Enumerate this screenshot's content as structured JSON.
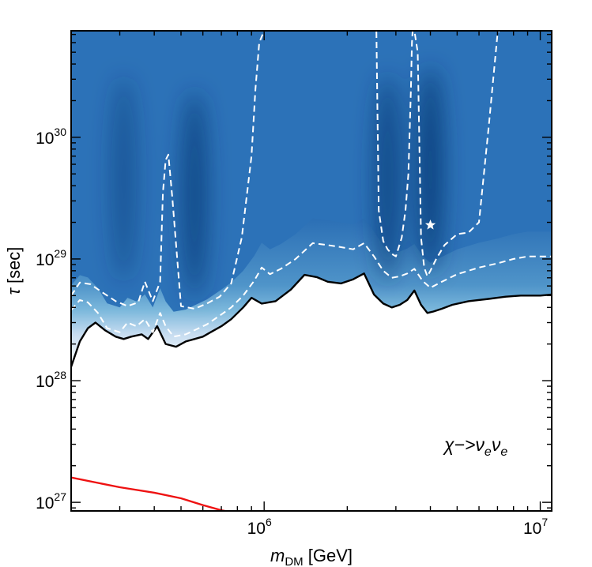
{
  "chart_data": {
    "type": "heatmap",
    "title": "",
    "xlabel": {
      "symbol": "m",
      "subscript": "DM",
      "unit": "[GeV]"
    },
    "ylabel": {
      "symbol": "τ",
      "unit": "[sec]"
    },
    "xscale": "log",
    "yscale": "log",
    "xlim": [
      200000,
      11000000
    ],
    "ylim": [
      8.5e+26,
      7.5e+30
    ],
    "x_ticks": [
      {
        "value": 1000000,
        "base": "10",
        "exp": "6"
      },
      {
        "value": 10000000,
        "base": "10",
        "exp": "7"
      }
    ],
    "y_ticks": [
      {
        "value": 1e+27,
        "base": "10",
        "exp": "27"
      },
      {
        "value": 1e+28,
        "base": "10",
        "exp": "28"
      },
      {
        "value": 1e+29,
        "base": "10",
        "exp": "29"
      },
      {
        "value": 1e+30,
        "base": "10",
        "exp": "30"
      }
    ],
    "colormap": "Blues",
    "annotation": {
      "text": "χ−>ν",
      "sub1": "e",
      "mid": "ν",
      "sub2": "e",
      "position": "lower-right"
    },
    "best_fit": {
      "x": 4000000,
      "y": 1.9e+29,
      "marker": "star",
      "color": "#ffffff"
    },
    "dark_ridges": [
      {
        "x": 310000,
        "y": 1.6e+29,
        "strength": 0.55
      },
      {
        "x": 560000,
        "y": 1.2e+29,
        "strength": 0.85
      },
      {
        "x": 2800000,
        "y": 1.6e+29,
        "strength": 0.85
      },
      {
        "x": 4000000,
        "y": 1.9e+29,
        "strength": 1.0
      }
    ],
    "series": [
      {
        "name": "limit",
        "color": "#000000",
        "style": "solid",
        "x": [
          200000,
          215000,
          230000,
          245000,
          265000,
          290000,
          310000,
          330000,
          360000,
          380000,
          410000,
          440000,
          480000,
          520000,
          560000,
          600000,
          640000,
          700000,
          760000,
          840000,
          900000,
          980000,
          1100000,
          1250000,
          1400000,
          1550000,
          1700000,
          1900000,
          2100000,
          2300000,
          2500000,
          2700000,
          2900000,
          3100000,
          3300000,
          3500000,
          3700000,
          3900000,
          4100000,
          4400000,
          4800000,
          5500000,
          6500000,
          7500000,
          8500000,
          10000000,
          11000000
        ],
        "y": [
          1.3e+28,
          2.1e+28,
          2.7e+28,
          3e+28,
          2.6e+28,
          2.3e+28,
          2.2e+28,
          2.3e+28,
          2.4e+28,
          2.2e+28,
          2.8e+28,
          2e+28,
          1.9e+28,
          2.1e+28,
          2.2e+28,
          2.3e+28,
          2.5e+28,
          2.8e+28,
          3.2e+28,
          4e+28,
          4.8e+28,
          4.3e+28,
          4.5e+28,
          5.6e+28,
          7.4e+28,
          7.1e+28,
          6.5e+28,
          6.3e+28,
          6.8e+28,
          7.6e+28,
          5.1e+28,
          4.3e+28,
          4e+28,
          4.2e+28,
          4.6e+28,
          5.5e+28,
          4.2e+28,
          3.6e+28,
          3.7e+28,
          3.9e+28,
          4.2e+28,
          4.5e+28,
          4.7e+28,
          4.9e+28,
          5e+28,
          5e+28,
          5.1e+28
        ]
      },
      {
        "name": "contour-lower",
        "color": "#ffffff",
        "style": "dashed",
        "x": [
          200000,
          215000,
          230000,
          250000,
          270000,
          300000,
          320000,
          345000,
          370000,
          395000,
          420000,
          440000,
          470000,
          520000,
          560000,
          620000,
          700000,
          760000,
          840000,
          920000,
          980000,
          1050000,
          1150000,
          1300000,
          1500000,
          1700000,
          1900000,
          2100000,
          2300000,
          2500000,
          2700000,
          2900000,
          3100000,
          3300000,
          3500000,
          3750000,
          4000000,
          4400000,
          5000000,
          6000000,
          7000000,
          8000000,
          9000000,
          10000000,
          11000000
        ],
        "y": [
          3.8e+28,
          4.6e+28,
          4.4e+28,
          3.6e+28,
          2.7e+28,
          2.5e+28,
          3e+28,
          2.8e+28,
          3.2e+28,
          2.5e+28,
          3.6e+28,
          2.8e+28,
          2.3e+28,
          2.4e+28,
          2.6e+28,
          2.9e+28,
          3.5e+28,
          4e+28,
          5e+28,
          6.6e+28,
          8.5e+28,
          7.5e+28,
          8.3e+28,
          1e+29,
          1.35e+29,
          1.3e+29,
          1.25e+29,
          1.2e+29,
          1.35e+29,
          1.05e+29,
          8e+28,
          7e+28,
          7.2e+28,
          7.6e+28,
          8.3e+28,
          6.6e+28,
          5.8e+28,
          6.5e+28,
          7.5e+28,
          8.5e+28,
          9.2e+28,
          1e+29,
          1.05e+29,
          1.05e+29,
          1.05e+29
        ]
      },
      {
        "name": "contour-upper",
        "color": "#ffffff",
        "style": "dashed",
        "x": [
          200000,
          215000,
          235000,
          260000,
          290000,
          320000,
          350000,
          370000,
          395000,
          420000,
          430000,
          440000,
          450000,
          465000,
          500000,
          560000,
          620000,
          690000,
          760000,
          830000,
          900000,
          930000,
          960000,
          1000000,
          1040000,
          1100000,
          1150000,
          1200000,
          1250000,
          1300000,
          1450000,
          1700000,
          2000000,
          2300000,
          2500000,
          2550000,
          2600000,
          2700000,
          2800000,
          2900000,
          3000000,
          3150000,
          3250000,
          3330000,
          3400000,
          3430000,
          3450000,
          3500000,
          3600000,
          3700000,
          3800000,
          3900000,
          4000000,
          4200000,
          4500000,
          5000000,
          5500000,
          6000000,
          6500000,
          7000000,
          7100000
        ],
        "y": [
          5e+28,
          6.4e+28,
          6.2e+28,
          5.3e+28,
          4.5e+28,
          4.1e+28,
          4.4e+28,
          6.5e+28,
          4.5e+28,
          6.5e+28,
          3.5e+29,
          6.5e+29,
          7.2e+29,
          3.2e+29,
          4.1e+28,
          3.9e+28,
          4.3e+28,
          4.9e+28,
          6.3e+28,
          1.5e+29,
          7e+29,
          2.5e+30,
          6e+30,
          7.5e+30,
          7.5e+30,
          7.5e+30,
          7.5e+30,
          7.5e+30,
          7.5e+30,
          7.5e+30,
          7.5e+30,
          7.5e+30,
          7.5e+30,
          7.5e+30,
          7.5e+30,
          7.5e+30,
          2.5e+29,
          1.4e+29,
          1.2e+29,
          1.1e+29,
          1.05e+29,
          1.5e+29,
          2.5e+29,
          5e+29,
          2.5e+30,
          6e+30,
          7.5e+30,
          7.5e+30,
          5e+30,
          1.5e+29,
          8.5e+28,
          7.2e+28,
          8e+28,
          1e+29,
          1.3e+29,
          1.6e+29,
          1.65e+29,
          2e+29,
          1.2e+30,
          7e+30,
          7.5e+30
        ]
      },
      {
        "name": "reference",
        "color": "#ee1111",
        "style": "solid",
        "x": [
          200000,
          300000,
          400000,
          500000,
          600000,
          700000,
          740000
        ],
        "y": [
          1.6e+27,
          1.33e+27,
          1.2e+27,
          1.08e+27,
          9.5e+26,
          8.6e+26,
          8.4e+26
        ]
      }
    ]
  }
}
